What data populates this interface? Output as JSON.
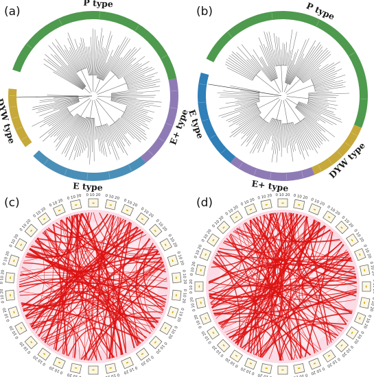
{
  "panels": {
    "a": {
      "letter": "(a)",
      "types": [
        {
          "key": "p",
          "label": "P type",
          "color": "#4e9a4e",
          "start": -72,
          "end": 78
        },
        {
          "key": "eplus",
          "label": "E+ type",
          "color": "#8e7bb5",
          "start": 78,
          "end": 142
        },
        {
          "key": "e",
          "label": "E type",
          "color": "#4a8fb8",
          "start": 142,
          "end": 225
        },
        {
          "key": "dyw",
          "label": "DYW type",
          "color": "#c6a93a",
          "start": 233,
          "end": 275
        }
      ]
    },
    "b": {
      "letter": "(b)",
      "types": [
        {
          "key": "p",
          "label": "P type",
          "color": "#4e9a4e",
          "start": -64,
          "end": 112
        },
        {
          "key": "dyw",
          "label": "DYW type",
          "color": "#c6a93a",
          "start": 112,
          "end": 158
        },
        {
          "key": "eplus",
          "label": "E+ type",
          "color": "#8e7bb5",
          "start": 158,
          "end": 218
        },
        {
          "key": "e",
          "label": "E type",
          "color": "#2f7fb8",
          "start": 218,
          "end": 286
        }
      ]
    },
    "c": {
      "letter": "(c)",
      "tick_values": [
        "0",
        "10",
        "20"
      ]
    },
    "d": {
      "letter": "(d)",
      "tick_values": [
        "0",
        "10",
        "20"
      ]
    }
  },
  "colors": {
    "link": "#dd1111",
    "link_band": "#fbdce6",
    "chromosome_box": "#555555",
    "chromosome_fill": "#fbf7e4",
    "tree_branch": "#6e6e6e"
  }
}
